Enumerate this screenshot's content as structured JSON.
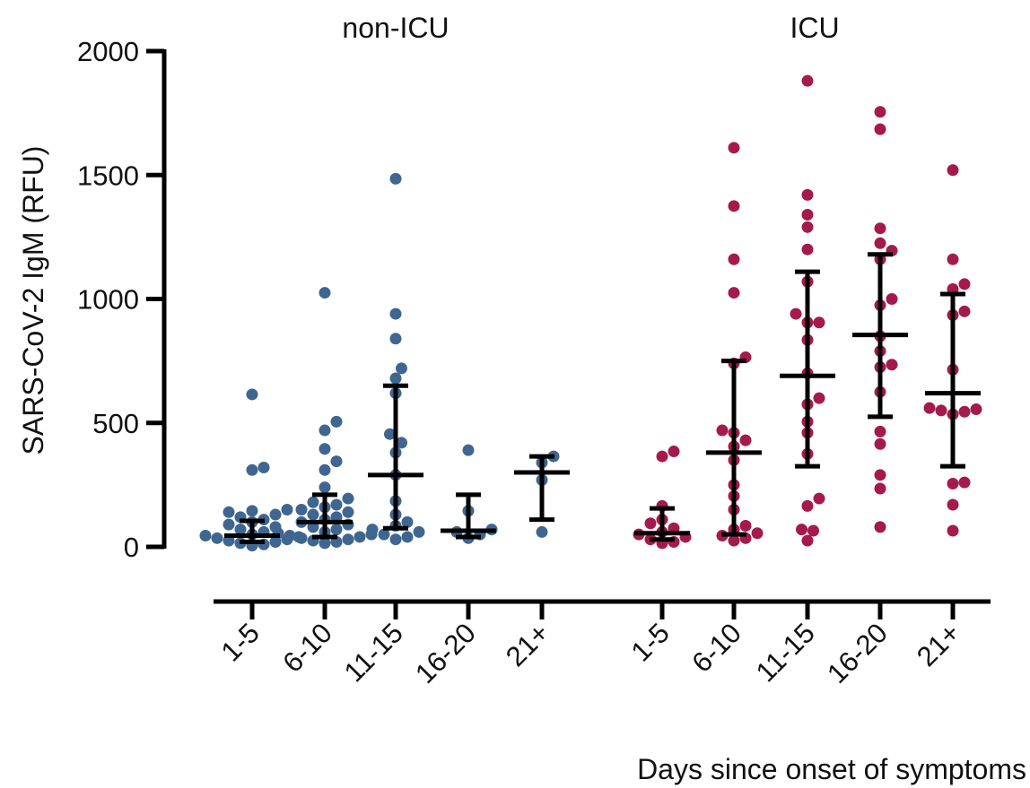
{
  "chart_data": {
    "type": "scatter",
    "ylabel": "SARS-CoV-2 IgM (RFU)",
    "xlabel": "Days since onset of symptoms",
    "ylim": [
      0,
      2000
    ],
    "yticks": [
      0,
      500,
      1000,
      1500,
      2000
    ],
    "grid": false,
    "colors": {
      "non_icu": "#3f6690",
      "icu": "#a51a4c",
      "error_bar": "#000000"
    },
    "groups": [
      {
        "name": "non-ICU",
        "categories": [
          {
            "label": "1-5",
            "median": 45,
            "lower": 20,
            "upper": 105,
            "values": [
              615,
              320,
              310,
              150,
              145,
              140,
              130,
              120,
              110,
              100,
              90,
              80,
              70,
              60,
              50,
              45,
              40,
              35,
              30,
              25,
              20,
              15,
              10,
              5
            ]
          },
          {
            "label": "6-10",
            "median": 100,
            "lower": 40,
            "upper": 210,
            "values": [
              1025,
              505,
              470,
              395,
              345,
              310,
              240,
              195,
              180,
              170,
              160,
              150,
              140,
              130,
              120,
              110,
              100,
              90,
              80,
              70,
              60,
              55,
              50,
              45,
              40,
              35,
              30,
              25,
              20,
              15
            ]
          },
          {
            "label": "11-15",
            "median": 290,
            "lower": 75,
            "upper": 650,
            "values": [
              1485,
              940,
              840,
              720,
              680,
              620,
              455,
              420,
              380,
              290,
              185,
              130,
              100,
              85,
              70,
              60,
              50,
              40,
              30
            ]
          },
          {
            "label": "16-20",
            "median": 65,
            "lower": 40,
            "upper": 210,
            "values": [
              390,
              145,
              70,
              60,
              50,
              35
            ]
          },
          {
            "label": "21+",
            "median": 300,
            "lower": 110,
            "upper": 365,
            "values": [
              365,
              340,
              270,
              60
            ]
          }
        ]
      },
      {
        "name": "ICU",
        "categories": [
          {
            "label": "1-5",
            "median": 55,
            "lower": 30,
            "upper": 155,
            "values": [
              385,
              365,
              165,
              110,
              95,
              75,
              60,
              50,
              40,
              30,
              20,
              15
            ]
          },
          {
            "label": "6-10",
            "median": 380,
            "lower": 50,
            "upper": 750,
            "values": [
              1610,
              1375,
              1160,
              1025,
              765,
              740,
              470,
              460,
              430,
              405,
              350,
              250,
              205,
              150,
              85,
              70,
              55,
              45,
              35,
              25
            ]
          },
          {
            "label": "11-15",
            "median": 690,
            "lower": 325,
            "upper": 1110,
            "values": [
              1880,
              1420,
              1340,
              1290,
              1200,
              1070,
              940,
              905,
              905,
              835,
              700,
              600,
              575,
              505,
              460,
              375,
              195,
              165,
              70,
              65,
              25
            ]
          },
          {
            "label": "16-20",
            "median": 855,
            "lower": 525,
            "upper": 1180,
            "values": [
              1755,
              1685,
              1285,
              1225,
              1195,
              1160,
              1000,
              975,
              850,
              790,
              735,
              725,
              625,
              465,
              415,
              290,
              235,
              80
            ]
          },
          {
            "label": "21+",
            "median": 620,
            "lower": 325,
            "upper": 1020,
            "values": [
              1520,
              1160,
              1060,
              1040,
              950,
              935,
              715,
              560,
              555,
              550,
              545,
              535,
              260,
              255,
              170,
              65
            ]
          }
        ]
      }
    ]
  }
}
